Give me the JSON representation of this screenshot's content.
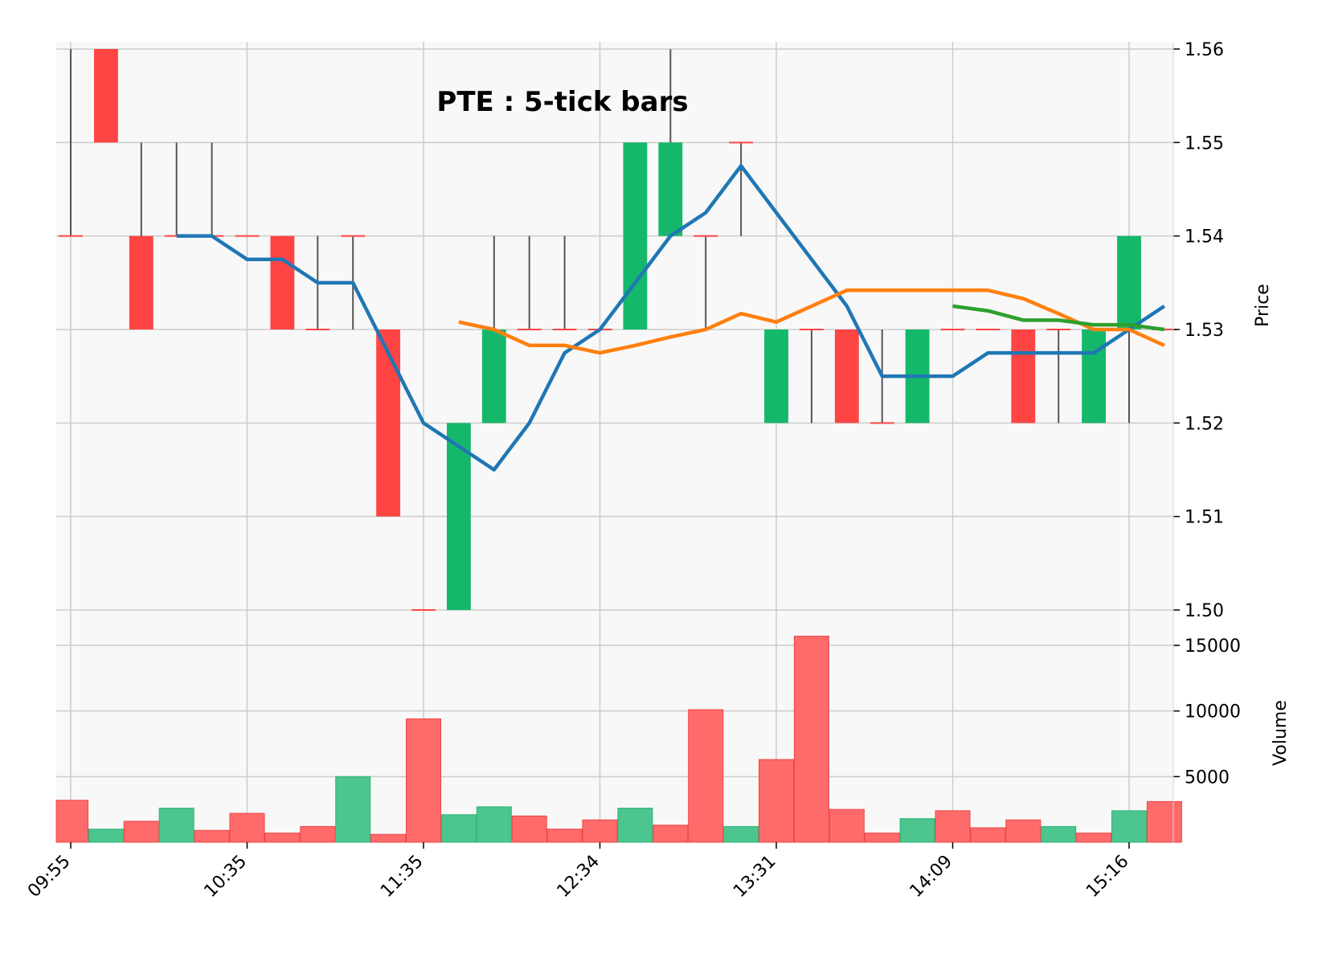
{
  "chart_data": {
    "type": "candlestick",
    "title": "PTE : 5-tick bars",
    "price_panel": {
      "ylabel": "Price",
      "ylim": [
        1.5,
        1.56
      ],
      "yticks": [
        "1.50",
        "1.51",
        "1.52",
        "1.53",
        "1.54",
        "1.55",
        "1.56"
      ],
      "yticks_values": [
        1.5,
        1.51,
        1.52,
        1.53,
        1.54,
        1.55,
        1.56
      ],
      "candles": [
        {
          "open": 1.54,
          "high": 1.56,
          "low": 1.54,
          "close": 1.54
        },
        {
          "open": 1.56,
          "high": 1.56,
          "low": 1.55,
          "close": 1.55
        },
        {
          "open": 1.54,
          "high": 1.55,
          "low": 1.53,
          "close": 1.53
        },
        {
          "open": 1.54,
          "high": 1.55,
          "low": 1.54,
          "close": 1.54
        },
        {
          "open": 1.54,
          "high": 1.55,
          "low": 1.54,
          "close": 1.54
        },
        {
          "open": 1.54,
          "high": 1.54,
          "low": 1.54,
          "close": 1.54
        },
        {
          "open": 1.54,
          "high": 1.54,
          "low": 1.53,
          "close": 1.53
        },
        {
          "open": 1.53,
          "high": 1.54,
          "low": 1.53,
          "close": 1.53
        },
        {
          "open": 1.54,
          "high": 1.54,
          "low": 1.53,
          "close": 1.54
        },
        {
          "open": 1.53,
          "high": 1.53,
          "low": 1.51,
          "close": 1.51
        },
        {
          "open": 1.5,
          "high": 1.5,
          "low": 1.5,
          "close": 1.5
        },
        {
          "open": 1.5,
          "high": 1.52,
          "low": 1.5,
          "close": 1.52
        },
        {
          "open": 1.52,
          "high": 1.54,
          "low": 1.52,
          "close": 1.53
        },
        {
          "open": 1.53,
          "high": 1.54,
          "low": 1.53,
          "close": 1.53
        },
        {
          "open": 1.53,
          "high": 1.54,
          "low": 1.53,
          "close": 1.53
        },
        {
          "open": 1.53,
          "high": 1.53,
          "low": 1.53,
          "close": 1.53
        },
        {
          "open": 1.53,
          "high": 1.55,
          "low": 1.53,
          "close": 1.55
        },
        {
          "open": 1.54,
          "high": 1.56,
          "low": 1.54,
          "close": 1.55
        },
        {
          "open": 1.54,
          "high": 1.54,
          "low": 1.53,
          "close": 1.54
        },
        {
          "open": 1.55,
          "high": 1.55,
          "low": 1.54,
          "close": 1.55
        },
        {
          "open": 1.52,
          "high": 1.53,
          "low": 1.52,
          "close": 1.53
        },
        {
          "open": 1.53,
          "high": 1.53,
          "low": 1.52,
          "close": 1.53
        },
        {
          "open": 1.53,
          "high": 1.53,
          "low": 1.52,
          "close": 1.52
        },
        {
          "open": 1.52,
          "high": 1.53,
          "low": 1.52,
          "close": 1.52
        },
        {
          "open": 1.52,
          "high": 1.53,
          "low": 1.52,
          "close": 1.53
        },
        {
          "open": 1.53,
          "high": 1.53,
          "low": 1.53,
          "close": 1.53
        },
        {
          "open": 1.53,
          "high": 1.53,
          "low": 1.53,
          "close": 1.53
        },
        {
          "open": 1.53,
          "high": 1.53,
          "low": 1.52,
          "close": 1.52
        },
        {
          "open": 1.53,
          "high": 1.53,
          "low": 1.52,
          "close": 1.53
        },
        {
          "open": 1.52,
          "high": 1.53,
          "low": 1.52,
          "close": 1.53
        },
        {
          "open": 1.53,
          "high": 1.54,
          "low": 1.52,
          "close": 1.54
        },
        {
          "open": 1.53,
          "high": 1.53,
          "low": 1.53,
          "close": 1.53
        }
      ],
      "moving_averages": [
        {
          "color": "#1f77b4",
          "values": [
            null,
            null,
            null,
            1.54,
            1.54,
            1.5375,
            1.5375,
            1.535,
            1.535,
            1.5275,
            1.52,
            1.5175,
            1.515,
            1.52,
            1.5275,
            1.53,
            1.535,
            1.54,
            1.5425,
            1.5475,
            1.5425,
            1.5375,
            1.5325,
            1.525,
            1.525,
            1.525,
            1.5275,
            1.5275,
            1.5275,
            1.5275,
            1.53,
            1.5325
          ]
        },
        {
          "color": "#ff7f0e",
          "values": [
            null,
            null,
            null,
            null,
            null,
            null,
            null,
            null,
            null,
            null,
            null,
            1.5308,
            1.53,
            1.5283,
            1.5283,
            1.5275,
            1.5283,
            1.5292,
            1.53,
            1.5317,
            1.5308,
            1.5325,
            1.5342,
            1.5342,
            1.5342,
            1.5342,
            1.5342,
            1.5333,
            1.5317,
            1.53,
            1.53,
            1.5283
          ]
        },
        {
          "color": "#2ca02c",
          "values": [
            null,
            null,
            null,
            null,
            null,
            null,
            null,
            null,
            null,
            null,
            null,
            null,
            null,
            null,
            null,
            null,
            null,
            null,
            null,
            null,
            null,
            null,
            null,
            null,
            null,
            1.5325,
            1.532,
            1.531,
            1.531,
            1.5305,
            1.5305,
            1.53
          ]
        }
      ]
    },
    "volume_panel": {
      "ylabel": "Volume",
      "ylim": [
        0,
        17000
      ],
      "yticks": [
        "5000",
        "10000",
        "15000"
      ],
      "yticks_values": [
        5000,
        10000,
        15000
      ],
      "values": [
        3200,
        1000,
        1600,
        2600,
        900,
        2200,
        700,
        1200,
        5000,
        600,
        9400,
        2100,
        2700,
        2000,
        1000,
        1700,
        2600,
        1300,
        10100,
        1200,
        6300,
        15700,
        2500,
        700,
        1800,
        2400,
        1100,
        1700,
        1200,
        700,
        2400,
        3100
      ],
      "directions": [
        "down",
        "up",
        "down",
        "up",
        "down",
        "down",
        "down",
        "down",
        "up",
        "down",
        "down",
        "up",
        "up",
        "down",
        "down",
        "down",
        "up",
        "down",
        "down",
        "up",
        "down",
        "down",
        "down",
        "down",
        "up",
        "down",
        "down",
        "down",
        "up",
        "down",
        "up",
        "down"
      ]
    },
    "x_tick_labels": [
      "09:55",
      "10:35",
      "11:35",
      "12:34",
      "13:31",
      "14:09",
      "15:16"
    ],
    "x_tick_indices": [
      0,
      5,
      10,
      15,
      20,
      25,
      30
    ],
    "colors": {
      "up": "#15b86b",
      "down": "#ff4444",
      "up_volume": "#4cc58f",
      "down_volume": "#ff6b6b",
      "wick": "#555555",
      "grid": "#cccccc",
      "panel_bg": "#f8f8f8"
    }
  }
}
